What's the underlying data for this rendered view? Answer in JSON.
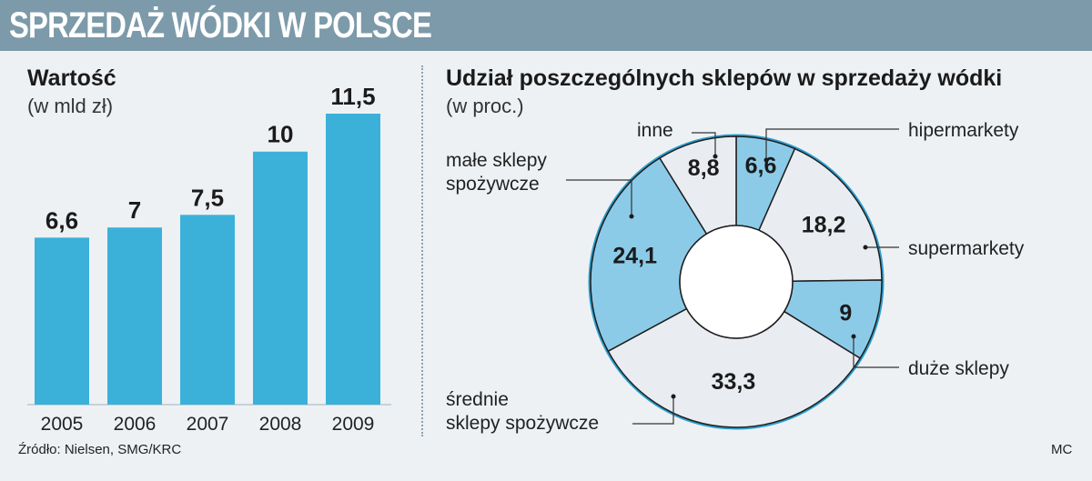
{
  "header": {
    "title": "SPRZEDAŻ WÓDKI W POLSCE"
  },
  "left": {
    "title": "Wartość",
    "subtitle": "(w mld zł)"
  },
  "right": {
    "title": "Udział poszczególnych sklepów w sprzedaży wódki",
    "subtitle": "(w proc.)"
  },
  "footer": {
    "source": "Źródło: Nielsen, SMG/KRC",
    "credit": "MC"
  },
  "colors": {
    "bar": "#3bb1da",
    "slice_blue": "#8ccbe8",
    "slice_light": "#e9ecf1",
    "ring_border": "#2d9fcf",
    "title_bar": "#7c9aa9"
  },
  "chart_data": [
    {
      "type": "bar",
      "title": "Wartość",
      "ylabel": "(w mld zł)",
      "categories": [
        "2005",
        "2006",
        "2007",
        "2008",
        "2009"
      ],
      "values": [
        6.6,
        7,
        7.5,
        10,
        11.5
      ],
      "value_labels": [
        "6,6",
        "7",
        "7,5",
        "10",
        "11,5"
      ],
      "ylim": [
        0,
        11.5
      ],
      "grid": false
    },
    {
      "type": "pie",
      "title": "Udział poszczególnych sklepów w sprzedaży wódki",
      "ylabel": "(w proc.)",
      "donut": true,
      "slices": [
        {
          "label": "hipermarkety",
          "value": 6.6,
          "value_label": "6,6",
          "fill": "blue"
        },
        {
          "label": "supermarkety",
          "value": 18.2,
          "value_label": "18,2",
          "fill": "light"
        },
        {
          "label": "duże sklepy",
          "value": 9,
          "value_label": "9",
          "fill": "blue"
        },
        {
          "label": "średnie sklepy spożywcze",
          "label_lines": [
            "średnie",
            "sklepy spożywcze"
          ],
          "value": 33.3,
          "value_label": "33,3",
          "fill": "light"
        },
        {
          "label": "małe sklepy spożywcze",
          "label_lines": [
            "małe sklepy",
            "spożywcze"
          ],
          "value": 24.1,
          "value_label": "24,1",
          "fill": "blue"
        },
        {
          "label": "inne",
          "value": 8.8,
          "value_label": "8,8",
          "fill": "light"
        }
      ]
    }
  ]
}
